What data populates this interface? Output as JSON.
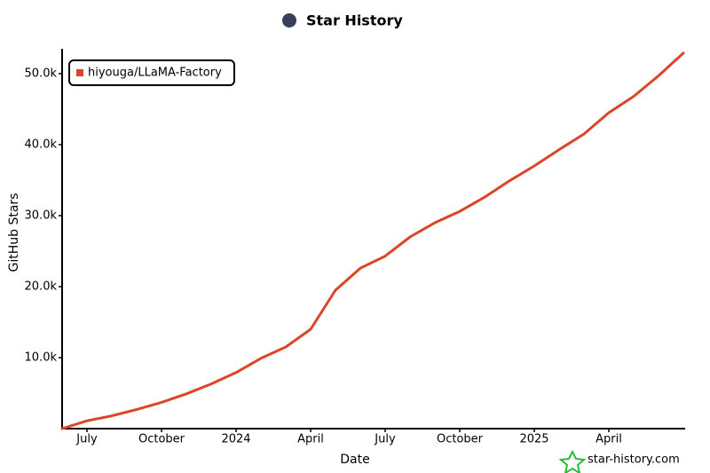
{
  "chart_data": {
    "type": "line",
    "title": "Star History",
    "x_label": "Date",
    "y_label": "GitHub Stars",
    "credit": "star-history.com",
    "x": [
      "2023-06",
      "2023-07",
      "2023-08",
      "2023-09",
      "2023-10",
      "2023-11",
      "2023-12",
      "2024-01",
      "2024-02",
      "2024-03",
      "2024-04",
      "2024-05",
      "2024-06",
      "2024-07",
      "2024-08",
      "2024-09",
      "2024-10",
      "2024-11",
      "2024-12",
      "2025-01",
      "2025-02",
      "2025-03",
      "2025-04",
      "2025-05",
      "2025-06",
      "2025-07"
    ],
    "series": [
      {
        "name": "hiyouga/LLaMA-Factory",
        "color": "#dd4528",
        "values": [
          0,
          1100,
          1800,
          2700,
          3700,
          4900,
          6300,
          7900,
          9900,
          11500,
          14000,
          19500,
          22600,
          24300,
          27000,
          29000,
          30600,
          32600,
          34900,
          37000,
          39300,
          41500,
          44500,
          46800,
          49700,
          52900
        ]
      }
    ],
    "xlim": [
      "2023-06",
      "2025-07"
    ],
    "xticks": [
      {
        "value": "2023-07",
        "label": "July"
      },
      {
        "value": "2023-10",
        "label": "October"
      },
      {
        "value": "2024-01",
        "label": "2024"
      },
      {
        "value": "2024-04",
        "label": "April"
      },
      {
        "value": "2024-07",
        "label": "July"
      },
      {
        "value": "2024-10",
        "label": "October"
      },
      {
        "value": "2025-01",
        "label": "2025"
      },
      {
        "value": "2025-04",
        "label": "April"
      }
    ],
    "ylim": [
      0,
      53500
    ],
    "yticks": [
      {
        "value": 10000,
        "label": "10.0k"
      },
      {
        "value": 20000,
        "label": "20.0k"
      },
      {
        "value": 30000,
        "label": "30.0k"
      },
      {
        "value": 40000,
        "label": "40.0k"
      },
      {
        "value": 50000,
        "label": "50.0k"
      }
    ],
    "legend": "top-left",
    "grid": false
  }
}
